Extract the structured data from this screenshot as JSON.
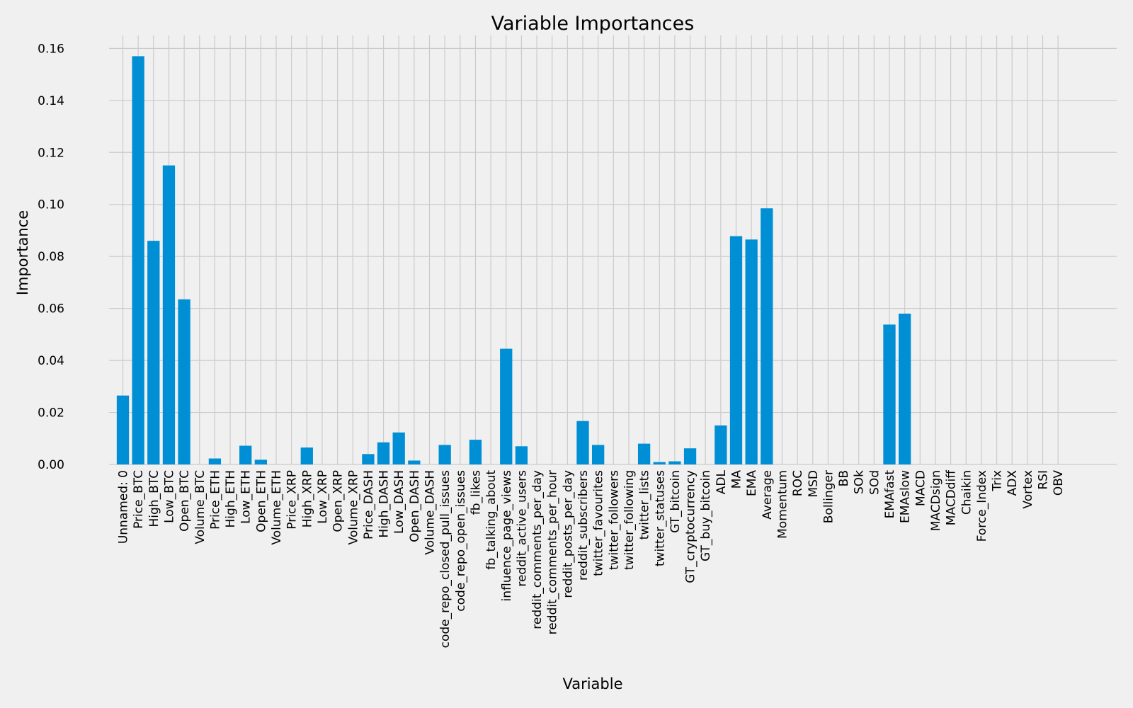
{
  "chart_data": {
    "type": "bar",
    "title": "Variable Importances",
    "xlabel": "Variable",
    "ylabel": "Importance",
    "ylim": [
      0,
      0.165
    ],
    "yticks": [
      "0.00",
      "0.02",
      "0.04",
      "0.06",
      "0.08",
      "0.10",
      "0.12",
      "0.14",
      "0.16"
    ],
    "grid": true,
    "bar_color": "#008fd5",
    "background": "#f0f0f0",
    "categories": [
      "Unnamed: 0",
      "Price_BTC",
      "High_BTC",
      "Low_BTC",
      "Open_BTC",
      "Volume_BTC",
      "Price_ETH",
      "High_ETH",
      "Low_ETH",
      "Open_ETH",
      "Volume_ETH",
      "Price_XRP",
      "High_XRP",
      "Low_XRP",
      "Open_XRP",
      "Volume_XRP",
      "Price_DASH",
      "High_DASH",
      "Low_DASH",
      "Open_DASH",
      "Volume_DASH",
      "code_repo_closed_pull_issues",
      "code_repo_open_issues",
      "fb_likes",
      "fb_talking_about",
      "influence_page_views",
      "reddit_active_users",
      "reddit_comments_per_day",
      "reddit_comments_per_hour",
      "reddit_posts_per_day",
      "reddit_subscribers",
      "twitter_favourites",
      "twitter_followers",
      "twitter_following",
      "twitter_lists",
      "twitter_statuses",
      "GT_bitcoin",
      "GT_cryptocurrency",
      "GT_buy_bitcoin",
      "ADL",
      "MA",
      "EMA",
      "Average",
      "Momentum",
      "ROC",
      "MSD",
      "Bollinger",
      "BB",
      "SOk",
      "SOd",
      "EMAfast",
      "EMAslow",
      "MACD",
      "MACDsign",
      "MACDdiff",
      "Chaikin",
      "Force_Index",
      "Trix",
      "ADX",
      "Vortex",
      "RSI",
      "OBV"
    ],
    "values": [
      0.0265,
      0.157,
      0.086,
      0.115,
      0.0635,
      0,
      0.0023,
      0,
      0.0072,
      0.0018,
      0,
      0,
      0.0065,
      0,
      0,
      0,
      0.004,
      0.0085,
      0.0123,
      0.0015,
      0,
      0.0075,
      0,
      0.0095,
      0,
      0.0445,
      0.007,
      0,
      0,
      0,
      0.0167,
      0.0075,
      0,
      0,
      0.008,
      0.0009,
      0.0012,
      0.0062,
      0,
      0.015,
      0.0878,
      0.0865,
      0.0985,
      0,
      0,
      0,
      0,
      0,
      0,
      0,
      0.0538,
      0.058,
      0,
      0,
      0,
      0,
      0,
      0,
      0,
      0,
      0,
      0
    ]
  }
}
